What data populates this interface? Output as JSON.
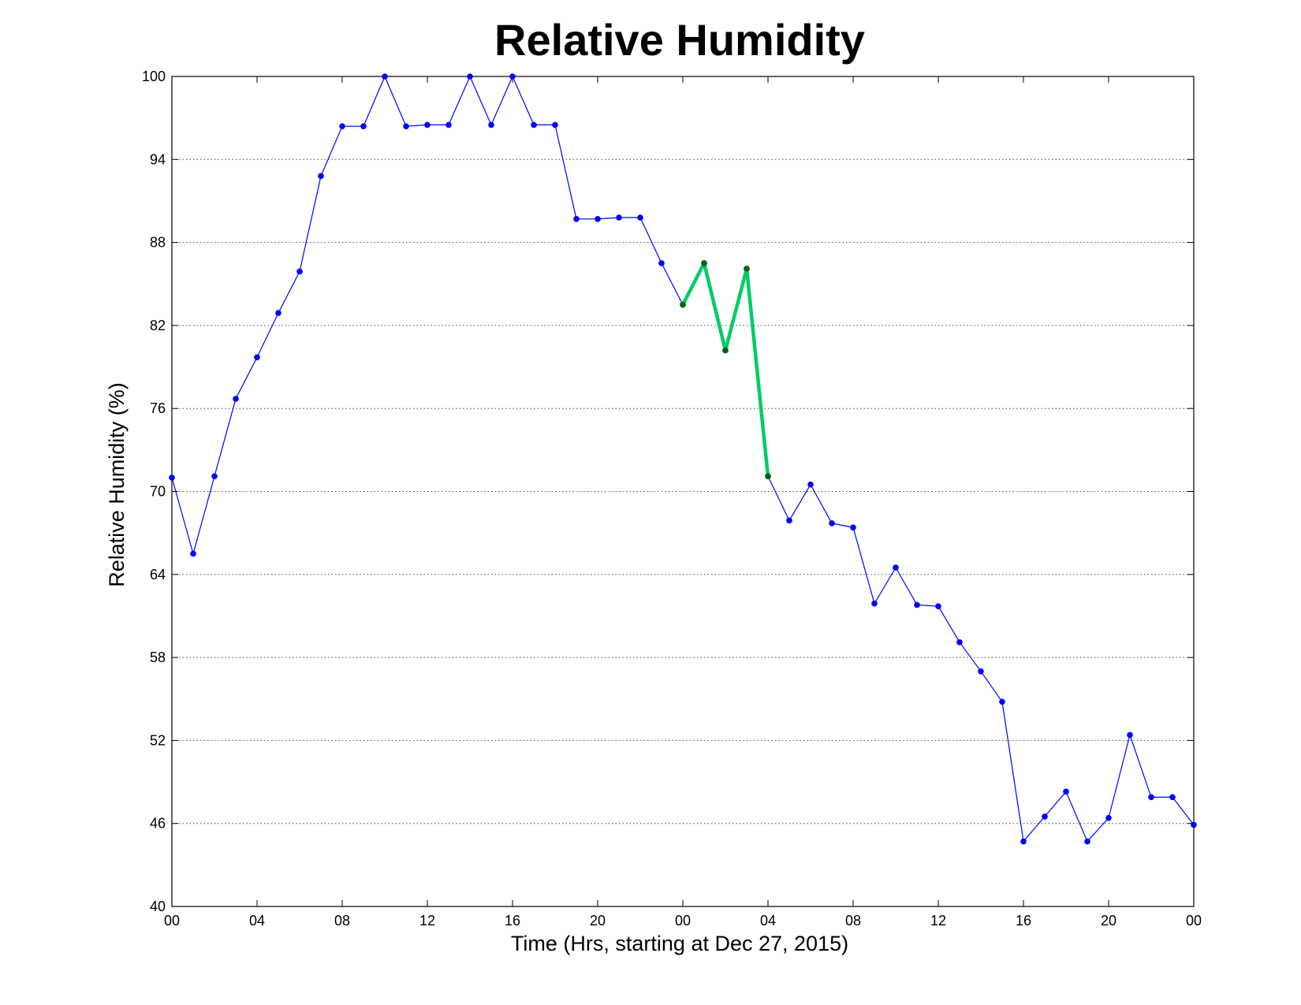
{
  "chart_data": {
    "type": "line",
    "title": "Relative Humidity",
    "xlabel": "Time (Hrs, starting at Dec 27, 2015)",
    "ylabel": "Relative Humidity (%)",
    "xlim": [
      0,
      48
    ],
    "ylim": [
      40,
      100
    ],
    "yticks": [
      40,
      46,
      52,
      58,
      64,
      70,
      76,
      82,
      88,
      94,
      100
    ],
    "xticks": [
      0,
      4,
      8,
      12,
      16,
      20,
      24,
      28,
      32,
      36,
      40,
      44,
      48
    ],
    "xtick_labels": [
      "00",
      "04",
      "08",
      "12",
      "16",
      "20",
      "00",
      "04",
      "08",
      "12",
      "16",
      "20",
      "00"
    ],
    "grid": "horizontal dotted",
    "legend": "none",
    "series": [
      {
        "color": "#0000ff",
        "line_width": "thin",
        "marker": "dot",
        "x": [
          0,
          1,
          2,
          3,
          4,
          5,
          6,
          7,
          8,
          9,
          10,
          11,
          12,
          13,
          14,
          15,
          16,
          17,
          18,
          19,
          20,
          21,
          22,
          23,
          24,
          25,
          26,
          27,
          28,
          29,
          30,
          31,
          32,
          33,
          34,
          35,
          36,
          37,
          38,
          39,
          40,
          41,
          42,
          43,
          44,
          45,
          46,
          47,
          48
        ],
        "values": [
          71.0,
          65.5,
          71.1,
          76.7,
          79.7,
          82.9,
          85.9,
          92.8,
          96.4,
          96.4,
          100,
          96.4,
          96.5,
          96.5,
          100,
          96.5,
          100,
          96.5,
          96.5,
          89.7,
          89.7,
          89.8,
          89.8,
          86.5,
          83.5,
          86.5,
          80.2,
          86.1,
          71.1,
          67.9,
          70.5,
          67.7,
          67.4,
          61.9,
          64.5,
          61.8,
          61.7,
          59.1,
          57.0,
          54.8,
          44.7,
          46.5,
          48.3,
          44.7,
          46.4,
          52.4,
          47.9,
          47.9,
          45.9
        ]
      },
      {
        "color": "#00cc66",
        "marker_color": "#006600",
        "line_width": "thick",
        "marker": "dot",
        "x": [
          24,
          25,
          26,
          27,
          28
        ],
        "values": [
          83.5,
          86.5,
          80.2,
          86.1,
          71.1
        ]
      }
    ]
  }
}
